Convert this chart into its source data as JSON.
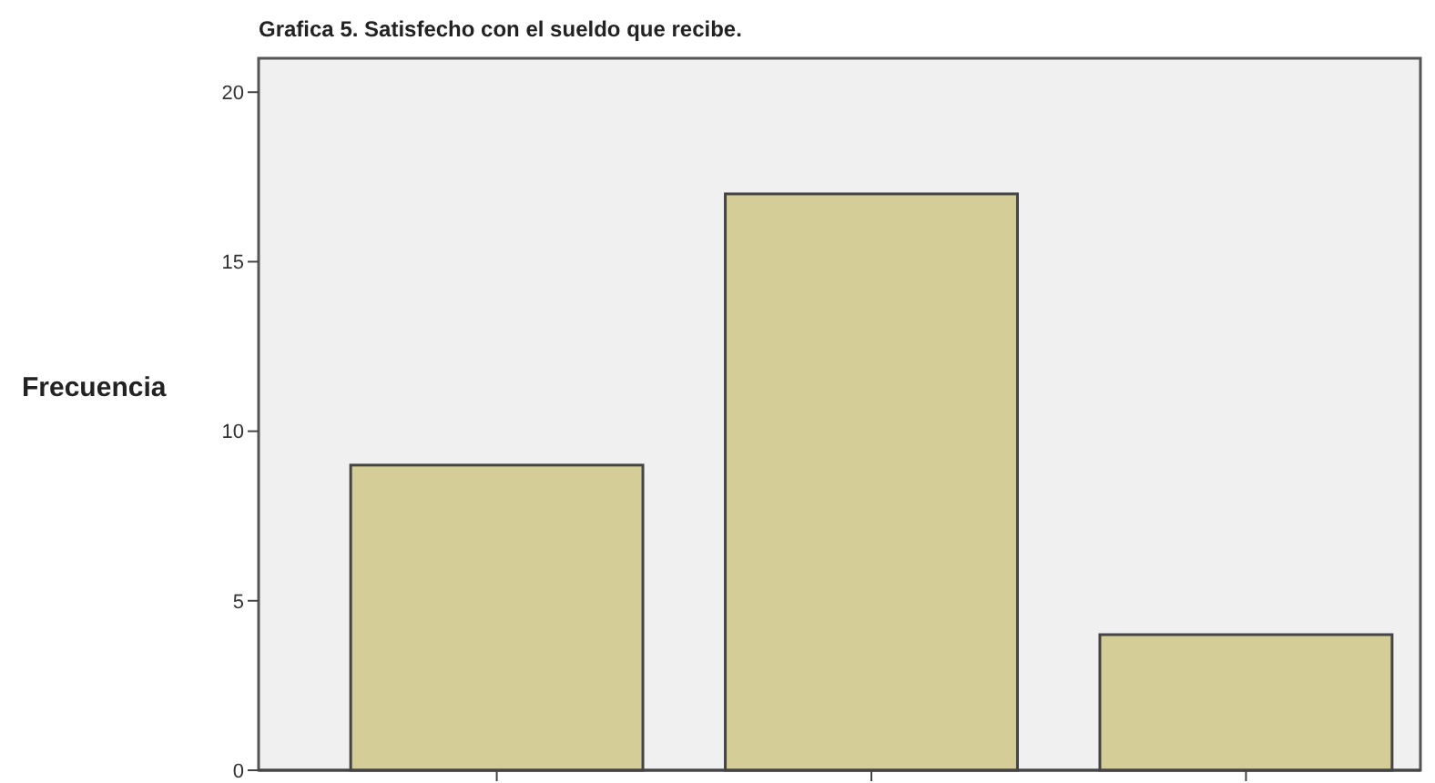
{
  "chart_data": {
    "type": "bar",
    "title": "Grafica 5. Satisfecho con el sueldo que recibe.",
    "ylabel": "Frecuencia",
    "categories": [
      null,
      null,
      null
    ],
    "values": [
      9,
      17,
      4
    ],
    "color": "#d4cd97",
    "ylim": [
      0,
      21
    ],
    "yticks": [
      0,
      5,
      10,
      15,
      20
    ]
  }
}
